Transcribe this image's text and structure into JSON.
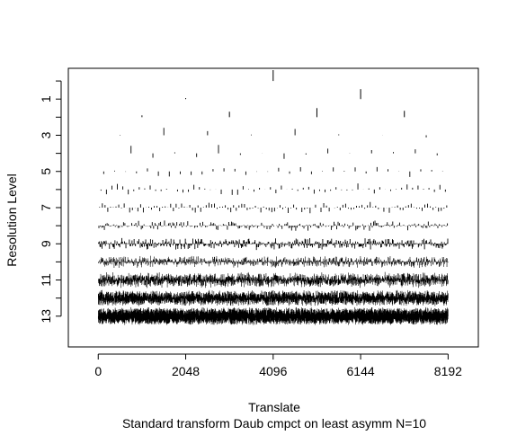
{
  "chart_data": {
    "type": "wavelet-coefficient-plot",
    "title": "",
    "xlabel": "Translate",
    "ylabel": "Resolution Level",
    "subtitle": "Standard transform Daub cmpct on least asymm N=10",
    "x_ticks": [
      0,
      2048,
      4096,
      6144,
      8192
    ],
    "x_tick_labels": [
      "0",
      "2048",
      "4096",
      "6144",
      "8192"
    ],
    "y_ticks": [
      1,
      3,
      5,
      7,
      9,
      11,
      13
    ],
    "y_tick_labels": [
      "1",
      "3",
      "5",
      "7",
      "9",
      "11",
      "13"
    ],
    "xlim": [
      -700,
      8900
    ],
    "ylim": [
      -0.7,
      14.7
    ],
    "levels": [
      0,
      1,
      2,
      3,
      4,
      5,
      6,
      7,
      8,
      9,
      10,
      11,
      12,
      13
    ],
    "signal_length": 8192,
    "level_amplitude_estimate": {
      "0": 0.6,
      "1": 0.5,
      "2": 0.55,
      "3": 0.5,
      "4": 0.45,
      "5": 0.35,
      "6": 0.3,
      "7": 0.35,
      "8": 0.3,
      "9": 0.35,
      "10": 0.35,
      "11": 0.45,
      "12": 0.45,
      "13": 0.5
    },
    "notable_coefficients": [
      {
        "level": 0,
        "translate": 4096,
        "magnitude": 0.6
      },
      {
        "level": 1,
        "translate": 6144,
        "magnitude": 0.55
      },
      {
        "level": 1,
        "translate": 2048,
        "magnitude": 0.05
      },
      {
        "level": 2,
        "translate": 1024,
        "magnitude": 0.1
      },
      {
        "level": 2,
        "translate": 3072,
        "magnitude": 0.3
      },
      {
        "level": 2,
        "translate": 5120,
        "magnitude": 0.5
      },
      {
        "level": 2,
        "translate": 7168,
        "magnitude": 0.35
      }
    ],
    "grid": false,
    "legend": "none"
  }
}
